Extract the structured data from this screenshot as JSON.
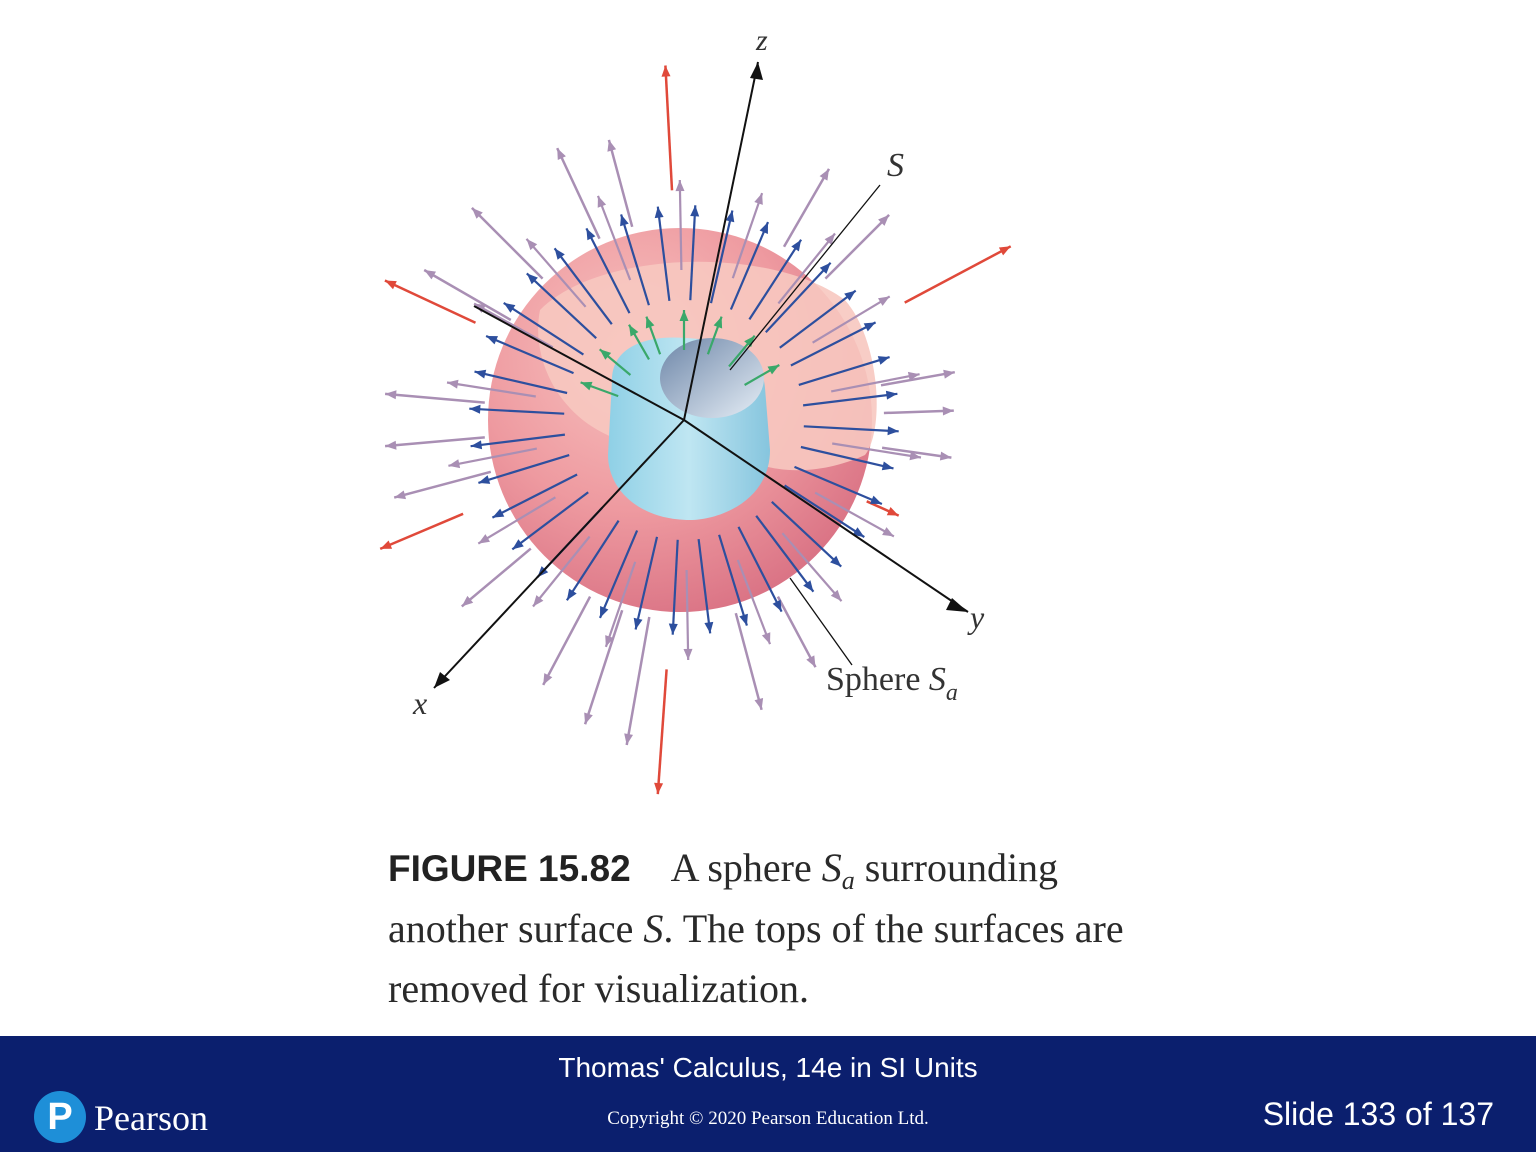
{
  "figure": {
    "axis_labels": {
      "x": "x",
      "y": "y",
      "z": "z"
    },
    "surface_label": "S",
    "sphere_label_text": "Sphere ",
    "sphere_label_symbol": "S",
    "sphere_label_subscript": "a",
    "colors": {
      "outer_sphere": "#ea8d98",
      "inner_surface": "#9fd3e6",
      "vector_red": "#e0493a",
      "vector_mauve": "#a98fb4",
      "vector_blue": "#2d4f9e",
      "vector_green": "#3aa86a"
    }
  },
  "caption": {
    "number": "FIGURE 15.82",
    "part1": "A sphere ",
    "symbol1": "S",
    "subscript1": "a",
    "part2": " surrounding another surface ",
    "symbol2": "S",
    "part3": ". The tops of the surfaces are removed for visualization."
  },
  "footer": {
    "book_title": "Thomas' Calculus, 14e in SI Units",
    "copyright": "Copyright © 2020 Pearson Education Ltd.",
    "slide_number": "Slide 133 of 137",
    "logo_mark": "P",
    "logo_text": "Pearson",
    "background_color": "#0b1f6e"
  }
}
